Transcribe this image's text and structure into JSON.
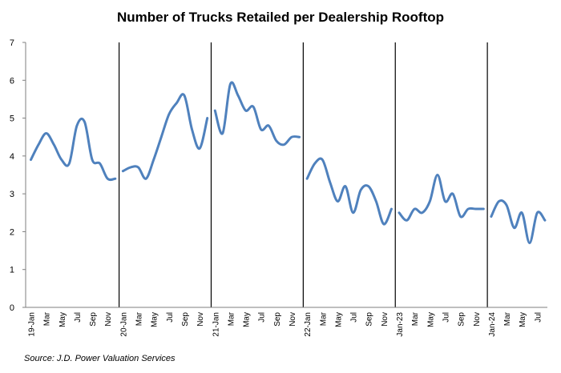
{
  "chart_data": {
    "type": "line",
    "title": "Number of Trucks Retailed per Dealership Rooftop",
    "source": "Source: J.D. Power Valuation Services",
    "xlabel": "",
    "ylabel": "",
    "ylim": [
      0,
      7
    ],
    "y_ticks": [
      0,
      1,
      2,
      3,
      4,
      5,
      6,
      7
    ],
    "grid": false,
    "line_color": "#4f81bd",
    "divider_color": "#000000",
    "x_tick_labels": [
      "19-Jan",
      "Mar",
      "May",
      "Jul",
      "Sep",
      "Nov",
      "20-Jan",
      "Mar",
      "May",
      "Jul",
      "Sep",
      "Nov",
      "21-Jan",
      "Mar",
      "May",
      "Jul",
      "Sep",
      "Nov",
      "22-Jan",
      "Mar",
      "May",
      "Jul",
      "Sep",
      "Nov",
      "Jan-23",
      "Mar",
      "May",
      "Jul",
      "Sep",
      "Nov",
      "Jan-24",
      "Mar",
      "May",
      "Jul"
    ],
    "series": [
      {
        "year": "2019",
        "values": [
          3.9,
          4.3,
          4.6,
          4.3,
          3.9,
          3.8,
          4.8,
          4.9,
          3.9,
          3.8,
          3.4,
          3.4
        ]
      },
      {
        "year": "2020",
        "values": [
          3.6,
          3.7,
          3.7,
          3.4,
          3.9,
          4.5,
          5.1,
          5.4,
          5.6,
          4.7,
          4.2,
          5.0
        ]
      },
      {
        "year": "2021",
        "values": [
          5.2,
          4.6,
          5.9,
          5.6,
          5.2,
          5.3,
          4.7,
          4.8,
          4.4,
          4.3,
          4.5,
          4.5
        ]
      },
      {
        "year": "2022",
        "values": [
          3.4,
          3.8,
          3.9,
          3.3,
          2.8,
          3.2,
          2.5,
          3.1,
          3.2,
          2.8,
          2.2,
          2.6
        ]
      },
      {
        "year": "2023",
        "values": [
          2.5,
          2.3,
          2.6,
          2.5,
          2.8,
          3.5,
          2.8,
          3.0,
          2.4,
          2.6,
          2.6,
          2.6
        ]
      },
      {
        "year": "2024",
        "values": [
          2.4,
          2.8,
          2.7,
          2.1,
          2.5,
          1.7,
          2.5,
          2.3
        ]
      }
    ]
  }
}
